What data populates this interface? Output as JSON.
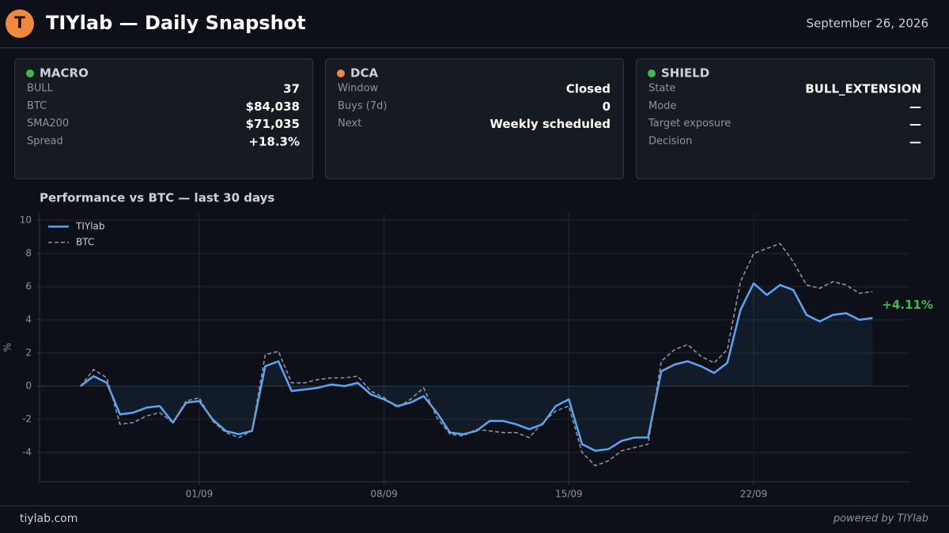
{
  "header": {
    "logo": "T",
    "title": "TIYlab — Daily Snapshot",
    "date": "September 26, 2026"
  },
  "cards": [
    {
      "title": "MACRO",
      "status_color": "#3fb950",
      "rows": [
        {
          "label": "BULL",
          "value": "37"
        },
        {
          "label": "BTC",
          "value": "$84,038"
        },
        {
          "label": "SMA200",
          "value": "$71,035"
        },
        {
          "label": "Spread",
          "value": "+18.3%"
        }
      ]
    },
    {
      "title": "DCA",
      "status_color": "#f0883e",
      "rows": [
        {
          "label": "Window",
          "value": "Closed"
        },
        {
          "label": "Buys (7d)",
          "value": "0"
        },
        {
          "label": "Next",
          "value": "Weekly scheduled"
        }
      ]
    },
    {
      "title": "SHIELD",
      "status_color": "#3fb950",
      "rows": [
        {
          "label": "State",
          "value": "BULL_EXTENSION"
        },
        {
          "label": "Mode",
          "value": "—"
        },
        {
          "label": "Target exposure",
          "value": "—"
        },
        {
          "label": "Decision",
          "value": "—"
        }
      ]
    }
  ],
  "chart_data": {
    "type": "line",
    "title": "Performance vs BTC — last 30 days",
    "y_label": "%",
    "x": [
      -3.5,
      -3,
      -2.5,
      -2,
      -1.5,
      -1,
      -0.5,
      0,
      0.5,
      1,
      1.5,
      2,
      2.5,
      3,
      3.5,
      4,
      4.5,
      5,
      5.5,
      6,
      6.5,
      7,
      7.5,
      8,
      8.5,
      9,
      9.5,
      10,
      10.5,
      11,
      11.5,
      12,
      12.5,
      13,
      13.5,
      14,
      14.5,
      15,
      15.5,
      16,
      16.5,
      17,
      17.5,
      18,
      18.5,
      19,
      19.5,
      20,
      20.5,
      21,
      21.5,
      22,
      22.5,
      23,
      23.5,
      24,
      24.5,
      25,
      25.5,
      26,
      26.5
    ],
    "series": [
      {
        "name": "TIYlab",
        "color": "#58a6ff",
        "dashed": false,
        "area": true,
        "values": [
          0,
          0.6,
          0.2,
          -1.7,
          -1.6,
          -1.3,
          -1.2,
          -2.2,
          -1.0,
          -0.9,
          -2.0,
          -2.7,
          -2.9,
          -2.7,
          1.2,
          1.5,
          -0.3,
          -0.2,
          -0.1,
          0.1,
          0.0,
          0.2,
          -0.5,
          -0.8,
          -1.2,
          -1.0,
          -0.6,
          -1.6,
          -2.8,
          -2.9,
          -2.7,
          -2.1,
          -2.1,
          -2.3,
          -2.6,
          -2.3,
          -1.2,
          -0.8,
          -3.5,
          -3.9,
          -3.8,
          -3.3,
          -3.1,
          -3.1,
          0.9,
          1.3,
          1.5,
          1.2,
          0.8,
          1.4,
          4.6,
          6.2,
          5.5,
          6.1,
          5.8,
          4.3,
          3.9,
          4.3,
          4.4,
          4.0,
          4.11
        ],
        "value_labels": [
          null,
          null,
          null,
          null,
          null,
          null,
          null,
          null,
          null,
          null,
          null,
          null,
          null,
          null,
          null,
          null,
          null,
          null,
          null,
          null,
          null,
          null,
          null,
          null,
          null,
          null,
          null,
          null,
          null,
          null,
          null,
          null,
          null,
          null,
          null,
          null,
          null,
          null,
          null,
          null,
          null,
          null,
          null,
          null,
          null,
          null,
          null,
          null,
          null,
          null,
          null,
          null,
          null,
          null,
          null,
          null,
          null,
          null,
          null,
          null,
          "+4.11%"
        ],
        "label_color": "#3fb950"
      },
      {
        "name": "BTC",
        "color": "#8b949e",
        "dashed": true,
        "area": false,
        "values": [
          0,
          1.0,
          0.5,
          -2.3,
          -2.2,
          -1.8,
          -1.6,
          -2.2,
          -0.9,
          -0.7,
          -2.1,
          -2.8,
          -3.1,
          -2.7,
          1.9,
          2.1,
          0.2,
          0.2,
          0.4,
          0.5,
          0.5,
          0.6,
          -0.3,
          -0.7,
          -1.3,
          -0.8,
          -0.1,
          -1.9,
          -2.9,
          -3.0,
          -2.6,
          -2.7,
          -2.8,
          -2.8,
          -3.1,
          -2.2,
          -1.5,
          -1.2,
          -4.0,
          -4.8,
          -4.5,
          -3.9,
          -3.7,
          -3.5,
          1.5,
          2.2,
          2.5,
          1.8,
          1.4,
          2.2,
          6.3,
          8.0,
          8.3,
          8.6,
          7.5,
          6.1,
          5.9,
          6.3,
          6.1,
          5.6,
          5.7
        ]
      }
    ],
    "xlim": [
      -5.05,
      27.9
    ],
    "xticks": [
      {
        "value": 1,
        "label": "01/09"
      },
      {
        "value": 8,
        "label": "08/09"
      },
      {
        "value": 15,
        "label": "15/09"
      },
      {
        "value": 22,
        "label": "22/09"
      }
    ],
    "ylim": [
      -5.76,
      10.43
    ],
    "yticks": [
      -4,
      -2,
      0,
      2,
      4,
      6,
      8,
      10
    ],
    "grid": true,
    "legend": "upper left"
  },
  "footer": {
    "left": "tiylab.com",
    "right": "powered by TIYlab"
  }
}
